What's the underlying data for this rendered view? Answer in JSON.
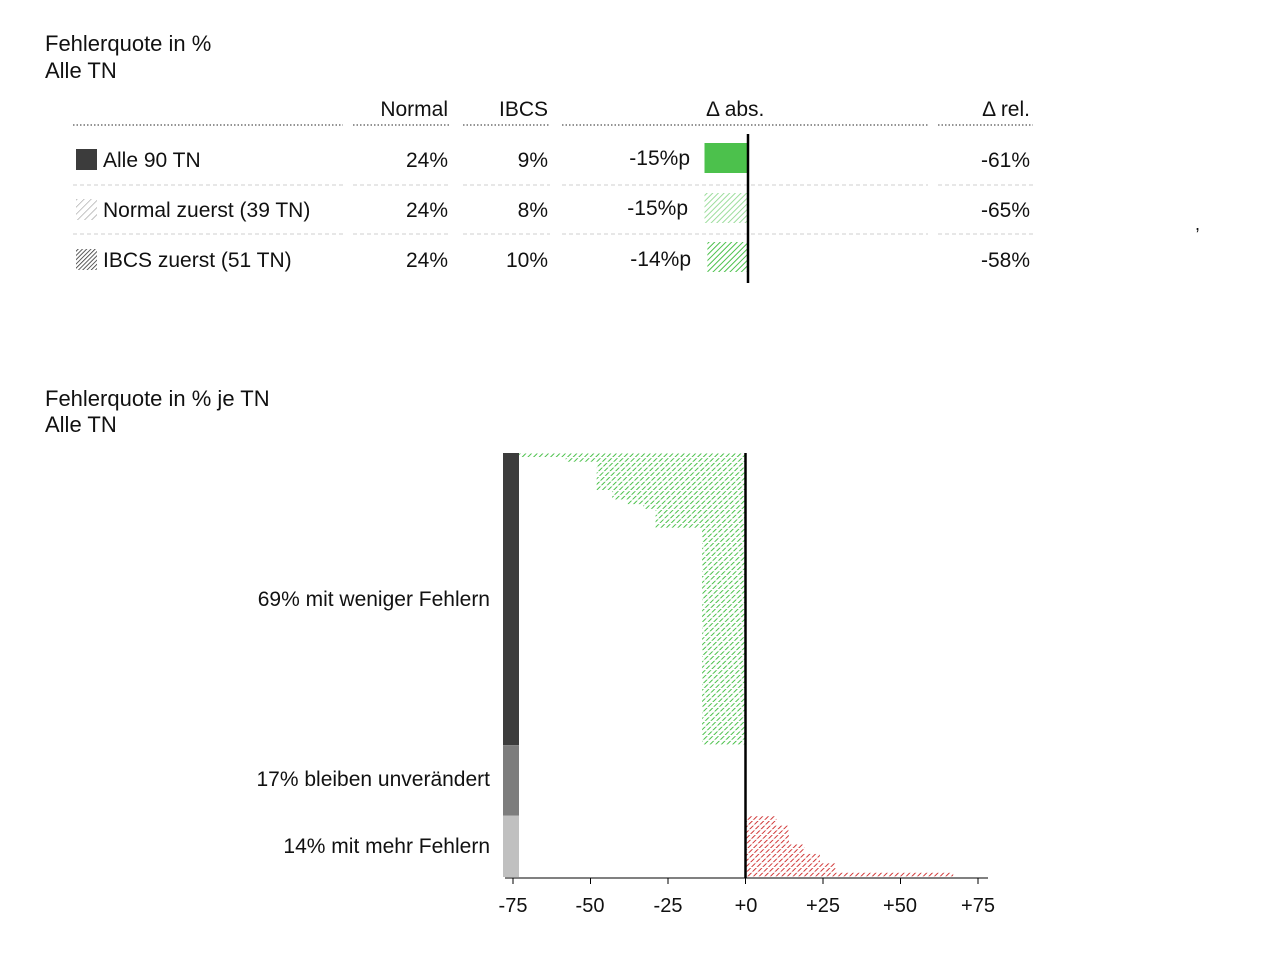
{
  "table_section": {
    "title": "Fehlerquote in %",
    "subtitle": "Alle TN",
    "headers": {
      "normal": "Normal",
      "ibcs": "IBCS",
      "delta_abs": "Δ abs.",
      "delta_rel": "Δ rel."
    },
    "rows": [
      {
        "label": "Alle 90 TN",
        "normal": "24%",
        "ibcs": "9%",
        "delta_abs": "-15%p",
        "delta_rel": "-61%",
        "delta_value": -15,
        "pattern": "solid"
      },
      {
        "label": "Normal zuerst (39 TN)",
        "normal": "24%",
        "ibcs": "8%",
        "delta_abs": "-15%p",
        "delta_rel": "-65%",
        "delta_value": -15,
        "pattern": "light-hatch"
      },
      {
        "label": "IBCS zuerst (51 TN)",
        "normal": "24%",
        "ibcs": "10%",
        "delta_abs": "-14%p",
        "delta_rel": "-58%",
        "delta_value": -14,
        "pattern": "dense-hatch"
      }
    ],
    "stray_mark": ","
  },
  "chart_section": {
    "title": "Fehlerquote in % je TN",
    "subtitle": "Alle TN",
    "groups": [
      {
        "label": "69% mit weniger Fehlern",
        "color": "#3c3c3c"
      },
      {
        "label": "17% bleiben unverändert",
        "color": "#7d7d7d"
      },
      {
        "label": "14% mit mehr Fehlern",
        "color": "#c0c0c0"
      }
    ],
    "tick_labels": [
      "-75",
      "-50",
      "-25",
      "+0",
      "+25",
      "+50",
      "+75"
    ]
  },
  "colors": {
    "negative": "#4cc14c",
    "positive": "#d13a3a",
    "axis": "#000000"
  },
  "chart_data": {
    "type": "bar",
    "orientation": "horizontal",
    "xlim": [
      -75,
      75
    ],
    "xticks": [
      -75,
      -50,
      -25,
      0,
      25,
      50,
      75
    ],
    "grid": false,
    "participants": 90,
    "values": [
      -73,
      -58,
      -48,
      -48,
      -48,
      -48,
      -48,
      -48,
      -43,
      -43,
      -38,
      -33,
      -29,
      -29,
      -29,
      -29,
      -14,
      -14,
      -14,
      -14,
      -14,
      -14,
      -14,
      -14,
      -14,
      -14,
      -14,
      -14,
      -14,
      -14,
      -14,
      -14,
      -14,
      -14,
      -14,
      -14,
      -14,
      -14,
      -14,
      -14,
      -14,
      -14,
      -14,
      -14,
      -14,
      -14,
      -14,
      -14,
      -14,
      -14,
      -14,
      -14,
      -14,
      -14,
      -14,
      -14,
      -14,
      -14,
      -14,
      -14,
      -14,
      -14,
      0,
      0,
      0,
      0,
      0,
      0,
      0,
      0,
      0,
      0,
      0,
      0,
      0,
      0,
      0,
      10,
      10,
      14,
      14,
      14,
      14,
      19,
      19,
      24,
      24,
      29,
      29,
      67
    ],
    "groups": [
      {
        "label": "69% mit weniger Fehlern",
        "count": 62
      },
      {
        "label": "17% bleiben unverändert",
        "count": 15
      },
      {
        "label": "14% mit mehr Fehlern",
        "count": 13
      }
    ]
  }
}
